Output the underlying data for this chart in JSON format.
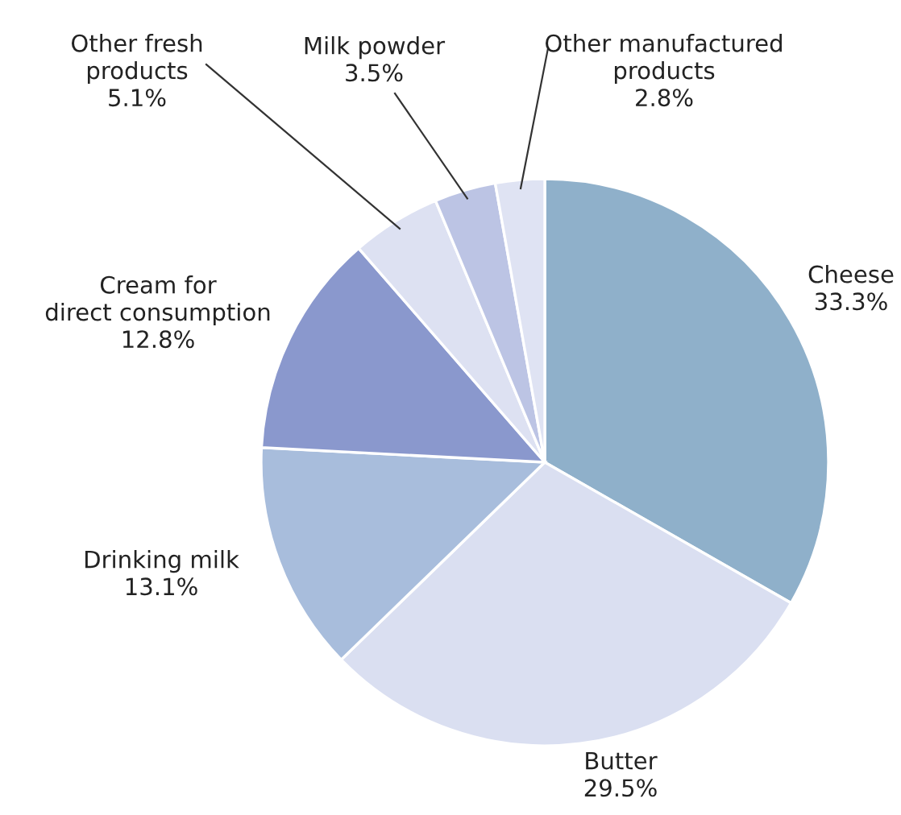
{
  "chart_data": {
    "type": "pie",
    "categories": [
      "Cheese",
      "Butter",
      "Drinking milk",
      "Cream for\ndirect consumption",
      "Other fresh\nproducts",
      "Milk powder",
      "Other manufactured\nproducts"
    ],
    "values": [
      33.3,
      29.5,
      13.1,
      12.8,
      5.1,
      3.5,
      2.8
    ],
    "colors": [
      "#8fb0ca",
      "#dadff1",
      "#a8bddc",
      "#8a98cd",
      "#dde1f2",
      "#bcc4e4",
      "#dfe3f3"
    ],
    "value_labels": [
      "33.3%",
      "29.5%",
      "13.1%",
      "12.8%",
      "5.1%",
      "3.5%",
      "2.8%"
    ]
  }
}
